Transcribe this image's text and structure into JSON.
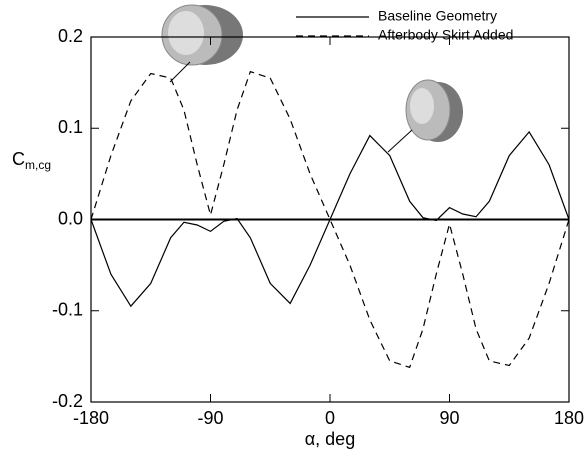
{
  "chart_data": {
    "type": "line",
    "xlabel": "α, deg",
    "ylabel": {
      "main": "C",
      "sub": "m,cg"
    },
    "x": [
      -180,
      -165,
      -150,
      -135,
      -120,
      -110,
      -100,
      -90,
      -80,
      -70,
      -60,
      -45,
      -30,
      -15,
      0,
      15,
      30,
      45,
      60,
      70,
      80,
      90,
      100,
      110,
      120,
      135,
      150,
      165,
      180
    ],
    "series": [
      {
        "name": "Baseline Geometry",
        "color": "#000000",
        "linestyle": "solid",
        "values": [
          0.0,
          -0.06,
          -0.095,
          -0.07,
          -0.02,
          -0.003,
          -0.006,
          -0.013,
          -0.002,
          0.001,
          -0.02,
          -0.07,
          -0.092,
          -0.05,
          0.0,
          0.05,
          0.092,
          0.07,
          0.02,
          0.002,
          -0.001,
          0.013,
          0.006,
          0.003,
          0.02,
          0.07,
          0.096,
          0.06,
          0.0
        ]
      },
      {
        "name": "Afterbody Skirt Added",
        "color": "#000000",
        "linestyle": "dashed",
        "values": [
          0.0,
          0.07,
          0.13,
          0.16,
          0.155,
          0.12,
          0.06,
          0.005,
          0.06,
          0.12,
          0.162,
          0.155,
          0.11,
          0.05,
          0.0,
          -0.05,
          -0.11,
          -0.155,
          -0.162,
          -0.12,
          -0.06,
          -0.005,
          -0.06,
          -0.12,
          -0.155,
          -0.16,
          -0.13,
          -0.07,
          0.0
        ]
      }
    ],
    "xlim": [
      -180,
      180
    ],
    "xticks": [
      -180,
      -90,
      0,
      90,
      180
    ],
    "ylim": [
      -0.2,
      0.2
    ],
    "yticks": [
      -0.2,
      -0.1,
      {
        "value": 0,
        "label": "0.0"
      },
      0.1,
      0.2
    ],
    "hline": 0,
    "grid": false,
    "legend": "upper right"
  }
}
